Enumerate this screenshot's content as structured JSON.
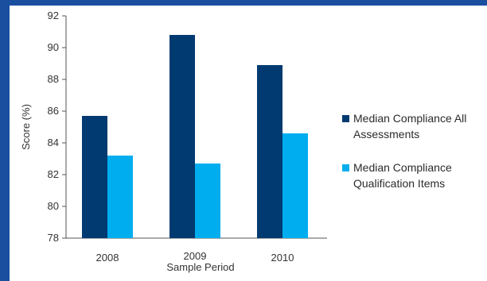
{
  "chart_data": {
    "type": "bar",
    "title": "",
    "xlabel": "Sample Period",
    "ylabel": "Score (%)",
    "categories": [
      "2008",
      "2009",
      "2010"
    ],
    "series": [
      {
        "name": "Median Compliance All Assessments",
        "values": [
          85.7,
          90.8,
          88.9
        ],
        "color": "#003a70"
      },
      {
        "name": "Median Compliance Qualification Items",
        "values": [
          83.2,
          82.7,
          84.6
        ],
        "color": "#00aeef"
      }
    ],
    "legend_lines": [
      [
        "Median Compliance All",
        "Assessments"
      ],
      [
        "Median Compliance",
        "Qualification Items"
      ]
    ],
    "ylim": [
      78,
      92
    ],
    "yticks": [
      "78",
      "80",
      "82",
      "84",
      "86",
      "88",
      "90",
      "92"
    ],
    "grid": false,
    "legend_position": "right",
    "colors": {
      "frame": "#1a4fa0",
      "background": "#ffffff"
    }
  }
}
